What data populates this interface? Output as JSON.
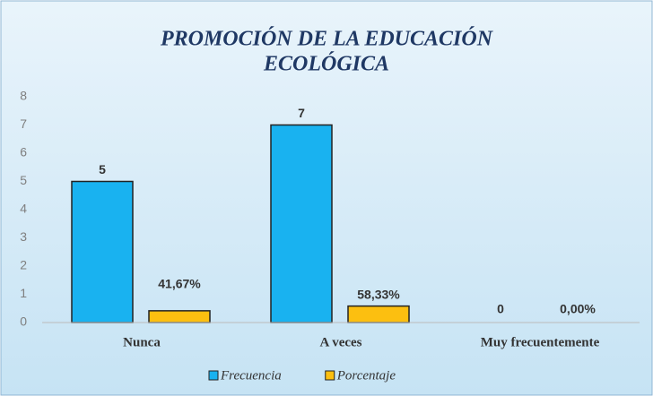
{
  "chart_data": {
    "type": "bar",
    "title": "PROMOCIÓN DE LA EDUCACIÓN",
    "subtitle": "ECOLÓGICA",
    "categories": [
      "Nunca",
      "A veces",
      "Muy  frecuentemente"
    ],
    "series": [
      {
        "name": "Frecuencia",
        "color": "#19b2f0",
        "values": [
          5,
          7,
          0
        ]
      },
      {
        "name": "Porcentaje",
        "color": "#fcbf10",
        "values": [
          0.4167,
          0.5833,
          0
        ],
        "value_labels": [
          "41,67%",
          "58,33%",
          "0,00%"
        ]
      }
    ],
    "ylim": [
      0,
      8
    ],
    "yticks": [
      0,
      1,
      2,
      3,
      4,
      5,
      6,
      7,
      8
    ],
    "grid": false,
    "legend": "bottom"
  }
}
